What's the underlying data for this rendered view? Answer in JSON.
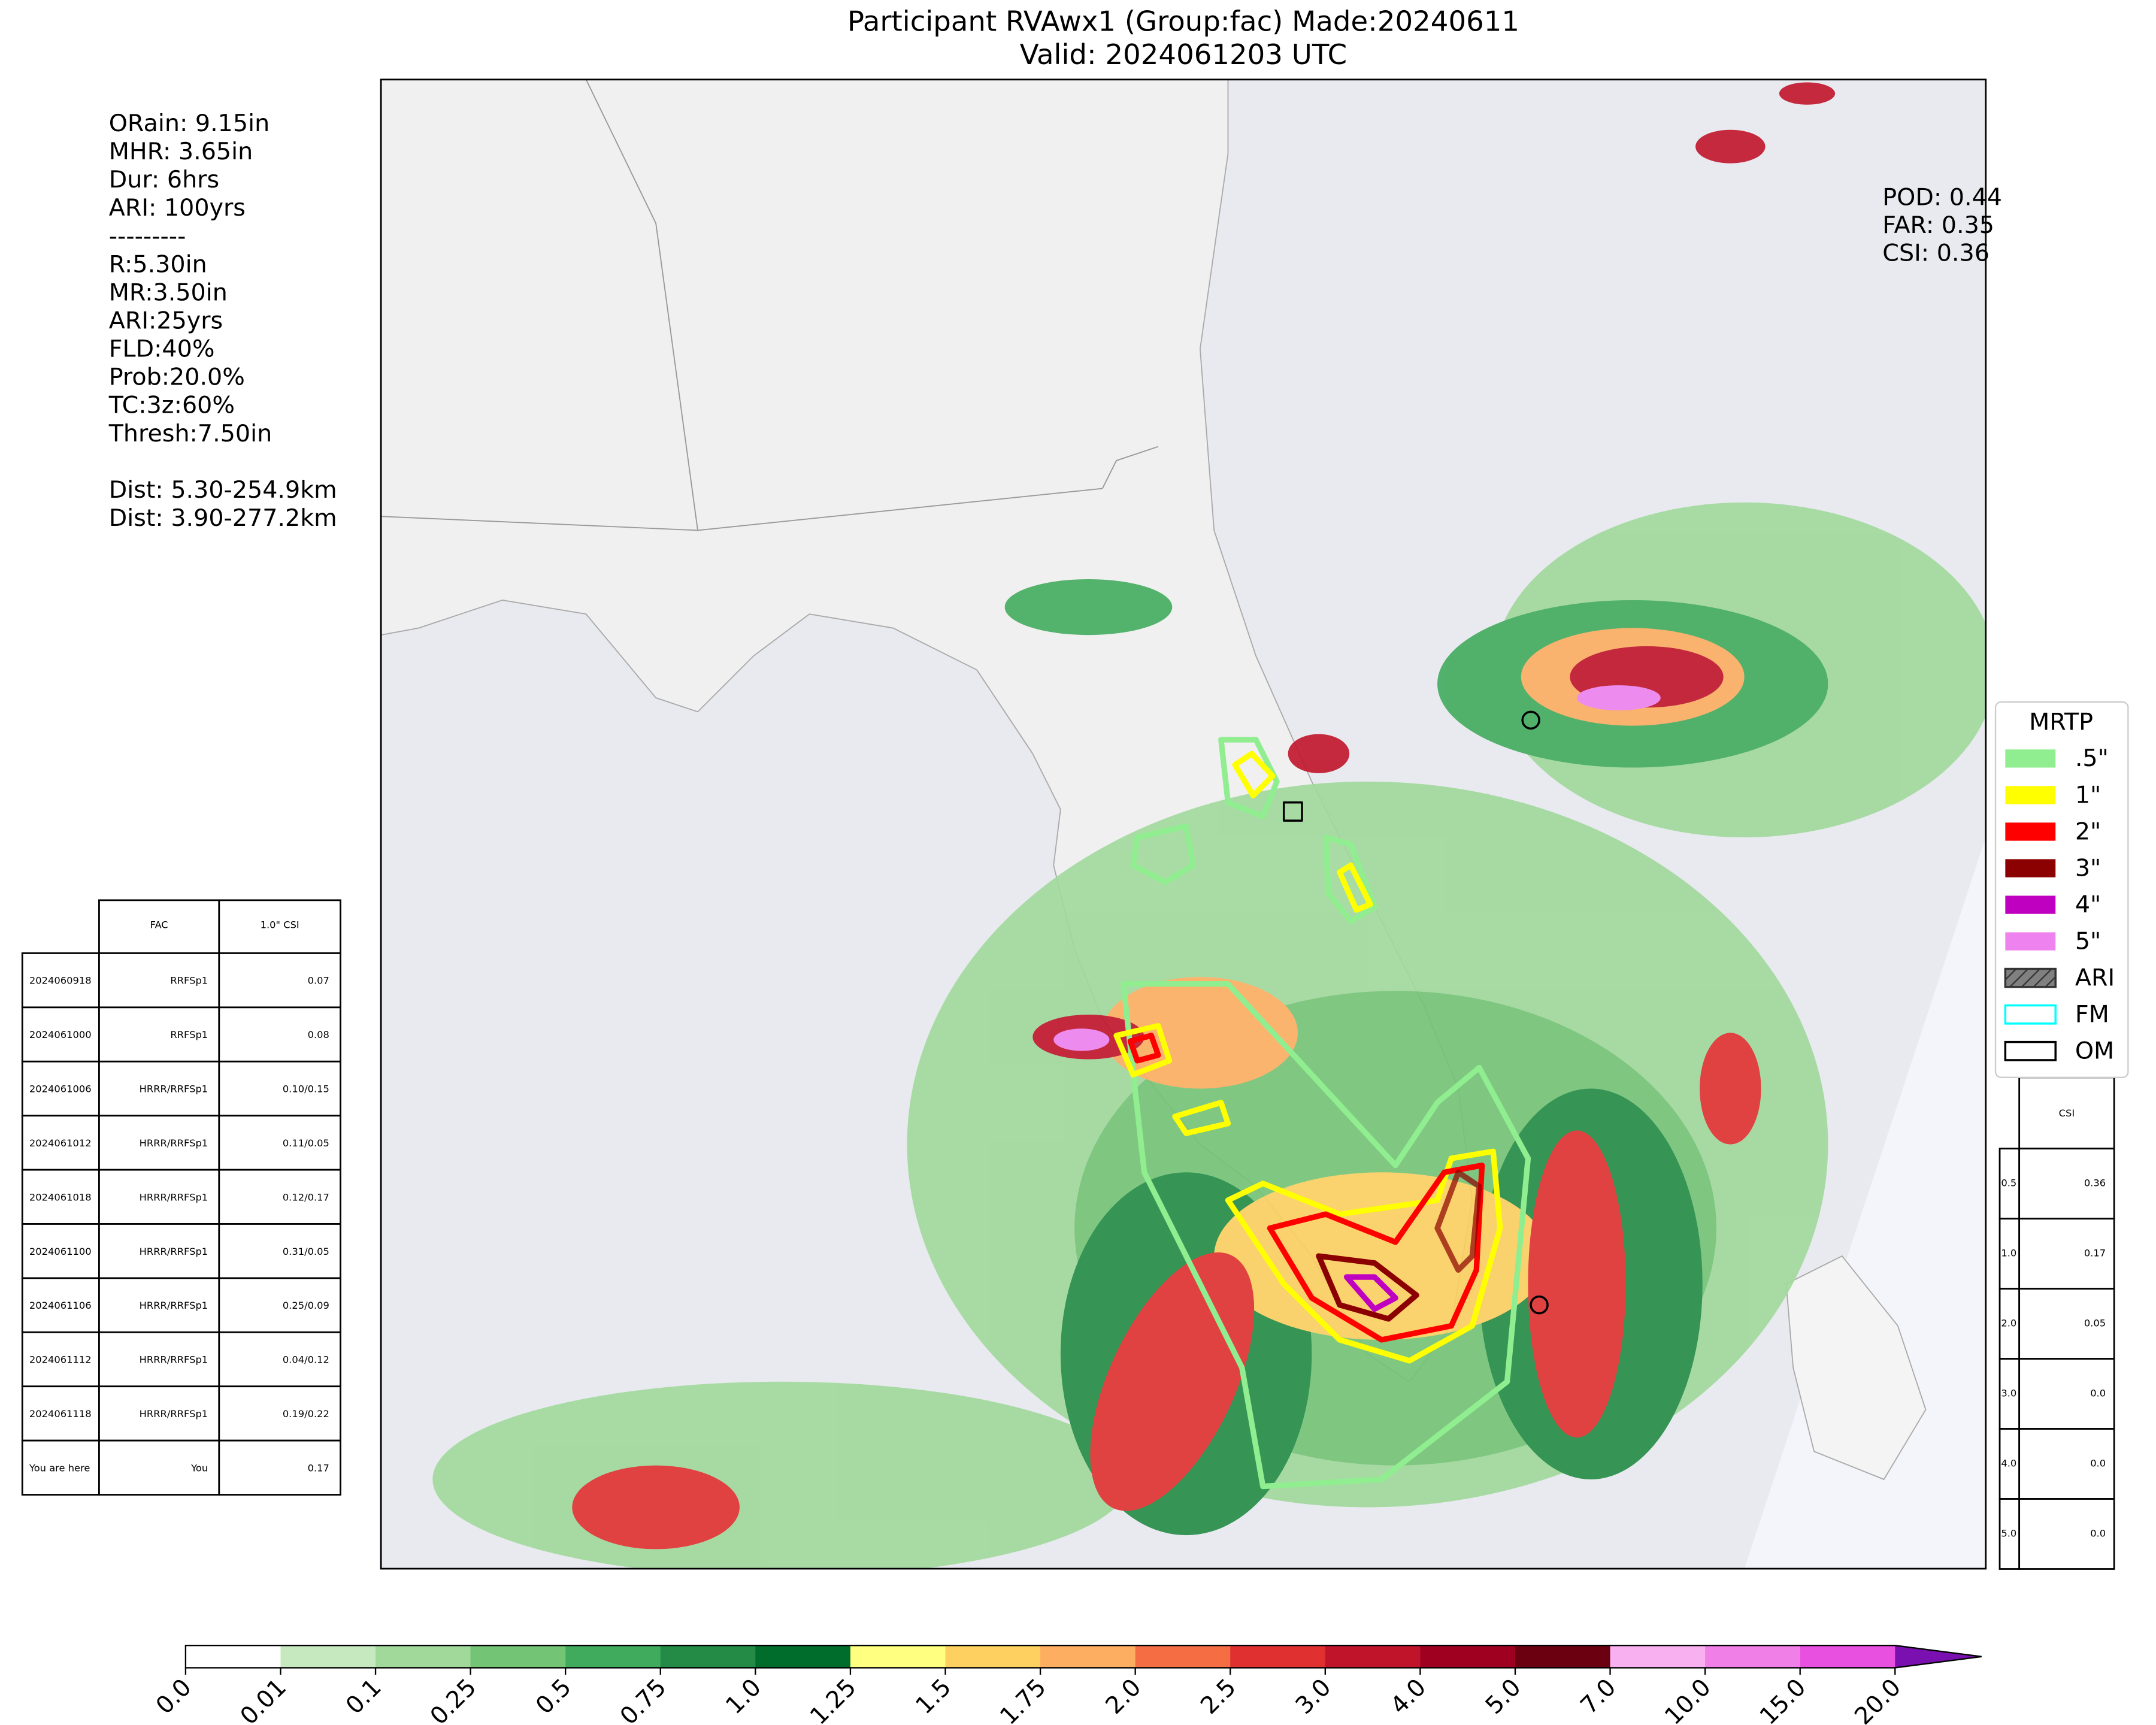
{
  "header": {
    "title": "Participant RVAwx1 (Group:fac) Made:20240611",
    "subtitle": "Valid: 2024061203 UTC"
  },
  "info_lines": [
    "ORain: 9.15in",
    "MHR: 3.65in",
    "Dur: 6hrs",
    "ARI: 100yrs",
    "---------",
    "R:5.30in",
    "MR:3.50in",
    "ARI:25yrs",
    "FLD:40%",
    "Prob:20.0%",
    "TC:3z:60%",
    "Thresh:7.50in"
  ],
  "dist_lines": [
    "Dist: 5.30-254.9km",
    "Dist: 3.90-277.2km"
  ],
  "scores": [
    "POD: 0.44",
    "FAR: 0.35",
    "CSI: 0.36"
  ],
  "legend": {
    "title": "MRTP",
    "items": [
      {
        "label": ".5\"",
        "color": "#90ee90",
        "style": "fill"
      },
      {
        "label": "1\"",
        "color": "#ffff00",
        "style": "fill"
      },
      {
        "label": "2\"",
        "color": "#ff0000",
        "style": "fill"
      },
      {
        "label": "3\"",
        "color": "#8b0000",
        "style": "fill"
      },
      {
        "label": "4\"",
        "color": "#c000c0",
        "style": "fill"
      },
      {
        "label": "5\"",
        "color": "#ee82ee",
        "style": "fill"
      },
      {
        "label": "ARI",
        "color": "#808080",
        "style": "hatch"
      },
      {
        "label": "FM",
        "color": "#00ffff",
        "style": "outline"
      },
      {
        "label": "OM",
        "color": "#000000",
        "style": "outline"
      }
    ]
  },
  "left_table": {
    "header": [
      "FAC",
      "1.0\" CSI"
    ],
    "rows": [
      [
        "2024060918",
        "RRFSp1",
        "0.07"
      ],
      [
        "2024061000",
        "RRFSp1",
        "0.08"
      ],
      [
        "2024061006",
        "HRRR/RRFSp1",
        "0.10/0.15"
      ],
      [
        "2024061012",
        "HRRR/RRFSp1",
        "0.11/0.05"
      ],
      [
        "2024061018",
        "HRRR/RRFSp1",
        "0.12/0.17"
      ],
      [
        "2024061100",
        "HRRR/RRFSp1",
        "0.31/0.05"
      ],
      [
        "2024061106",
        "HRRR/RRFSp1",
        "0.25/0.09"
      ],
      [
        "2024061112",
        "HRRR/RRFSp1",
        "0.04/0.12"
      ],
      [
        "2024061118",
        "HRRR/RRFSp1",
        "0.19/0.22"
      ],
      [
        "You are here",
        "You",
        "0.17"
      ]
    ]
  },
  "right_table": {
    "header": "CSI",
    "rows": [
      [
        "0.5",
        "0.36"
      ],
      [
        "1.0",
        "0.17"
      ],
      [
        "2.0",
        "0.05"
      ],
      [
        "3.0",
        "0.0"
      ],
      [
        "4.0",
        "0.0"
      ],
      [
        "5.0",
        "0.0"
      ]
    ]
  },
  "colorbar": {
    "labels": [
      "0.0",
      "0.01",
      "0.1",
      "0.25",
      "0.5",
      "0.75",
      "1.0",
      "1.25",
      "1.5",
      "1.75",
      "2.0",
      "2.5",
      "3.0",
      "4.0",
      "5.0",
      "7.0",
      "10.0",
      "15.0",
      "20.0"
    ],
    "colors": [
      "#ffffff",
      "#c7e9c0",
      "#a1d99b",
      "#74c476",
      "#41ab5d",
      "#238b45",
      "#006d2c",
      "#ffff80",
      "#fdd060",
      "#fdae61",
      "#f46d43",
      "#e03030",
      "#c0142a",
      "#a00020",
      "#6b0010",
      "#f8b0f0",
      "#f080e8",
      "#e850e0",
      "#d820d8",
      "#a010c8"
    ],
    "extend_color": "#7a10b0"
  }
}
